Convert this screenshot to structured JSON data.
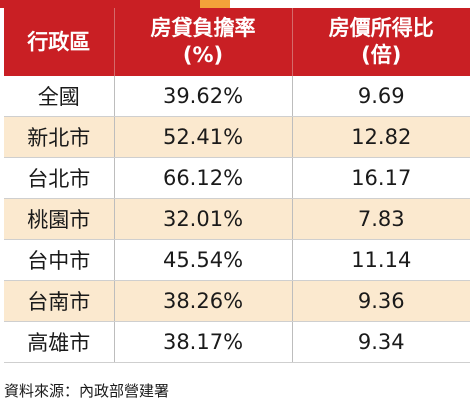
{
  "colors": {
    "header_bg": "#c91f24",
    "alt_row_bg": "#fbe9cf",
    "accent_orange": "#f3a23a"
  },
  "chart_data": {
    "type": "table",
    "columns": [
      {
        "line1": "行政區",
        "line2": ""
      },
      {
        "line1": "房貸負擔率",
        "line2": "(%)"
      },
      {
        "line1": "房價所得比",
        "line2": "(倍)"
      }
    ],
    "rows": [
      {
        "region": "全國",
        "burden": "39.62%",
        "ratio": "9.69"
      },
      {
        "region": "新北市",
        "burden": "52.41%",
        "ratio": "12.82"
      },
      {
        "region": "台北市",
        "burden": "66.12%",
        "ratio": "16.17"
      },
      {
        "region": "桃園市",
        "burden": "32.01%",
        "ratio": "7.83"
      },
      {
        "region": "台中市",
        "burden": "45.54%",
        "ratio": "11.14"
      },
      {
        "region": "台南市",
        "burden": "38.26%",
        "ratio": "9.36"
      },
      {
        "region": "高雄市",
        "burden": "38.17%",
        "ratio": "9.34"
      }
    ]
  },
  "source": "資料來源：內政部營建署"
}
